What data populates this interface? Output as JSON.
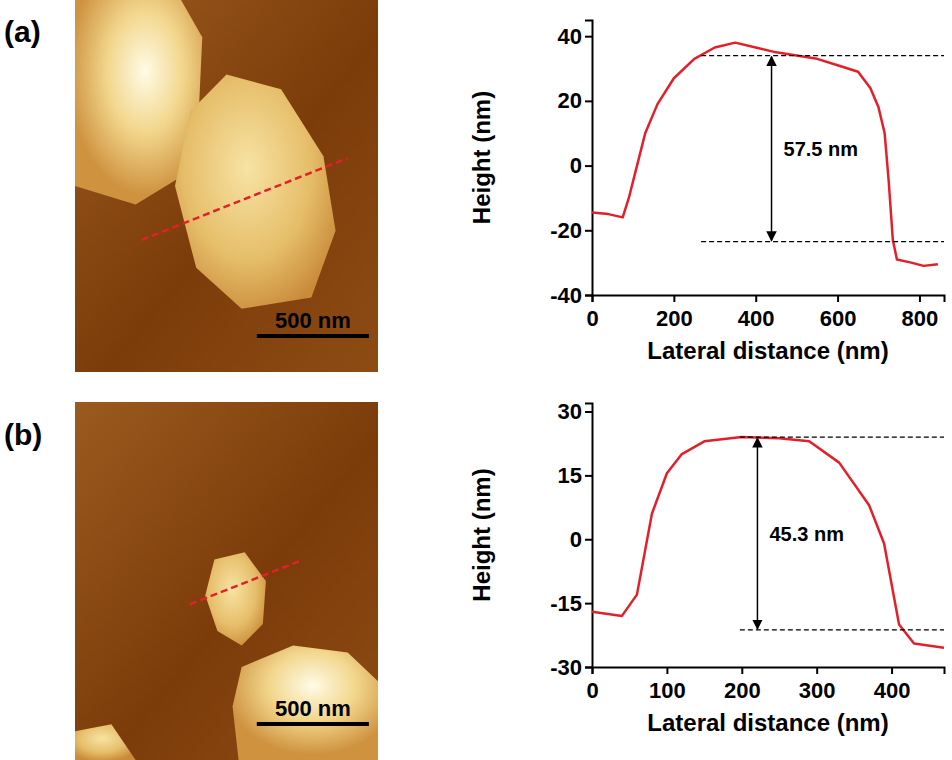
{
  "chart_data": [
    {
      "type": "line",
      "title": "(a)",
      "scale_bar": "500 nm",
      "x_label": "Lateral distance (nm)",
      "y_label": "Height (nm)",
      "x": [
        0,
        40,
        75,
        90,
        110,
        130,
        160,
        200,
        250,
        300,
        350,
        400,
        450,
        500,
        550,
        600,
        650,
        680,
        700,
        715,
        725,
        735,
        745,
        780,
        810,
        845
      ],
      "values": [
        -14.5,
        -15,
        -16,
        -10,
        0,
        10,
        19,
        27,
        33,
        36.5,
        38,
        36.5,
        35,
        34,
        33,
        31,
        29,
        24,
        18,
        10,
        -5,
        -23,
        -29,
        -30,
        -31,
        -30.5
      ],
      "color": "#e3202a",
      "xlim": [
        0,
        860
      ],
      "xticks": [
        0,
        200,
        400,
        600,
        800
      ],
      "ylim": [
        -40,
        45
      ],
      "yticks": [
        -40,
        -20,
        0,
        20,
        40
      ],
      "annotations": [
        {
          "text": "57.5 nm",
          "y_range": [
            -23.5,
            34.0
          ]
        }
      ]
    },
    {
      "type": "line",
      "title": "(b)",
      "scale_bar": "500 nm",
      "x_label": "Lateral distance (nm)",
      "y_label": "Height (nm)",
      "x": [
        0,
        40,
        60,
        80,
        100,
        120,
        150,
        200,
        250,
        290,
        330,
        370,
        390,
        410,
        430,
        470
      ],
      "values": [
        -17,
        -18,
        -13,
        6,
        15.5,
        20,
        23,
        24,
        23.7,
        23,
        18,
        8,
        -1,
        -20,
        -24.5,
        -25.5
      ],
      "color": "#e3202a",
      "xlim": [
        0,
        470
      ],
      "xticks": [
        0,
        100,
        200,
        300,
        400
      ],
      "ylim": [
        -30,
        32
      ],
      "yticks": [
        -30,
        -15,
        0,
        15,
        30
      ],
      "annotations": [
        {
          "text": "45.3 nm",
          "y_range": [
            -21.3,
            24.0
          ]
        }
      ]
    }
  ]
}
